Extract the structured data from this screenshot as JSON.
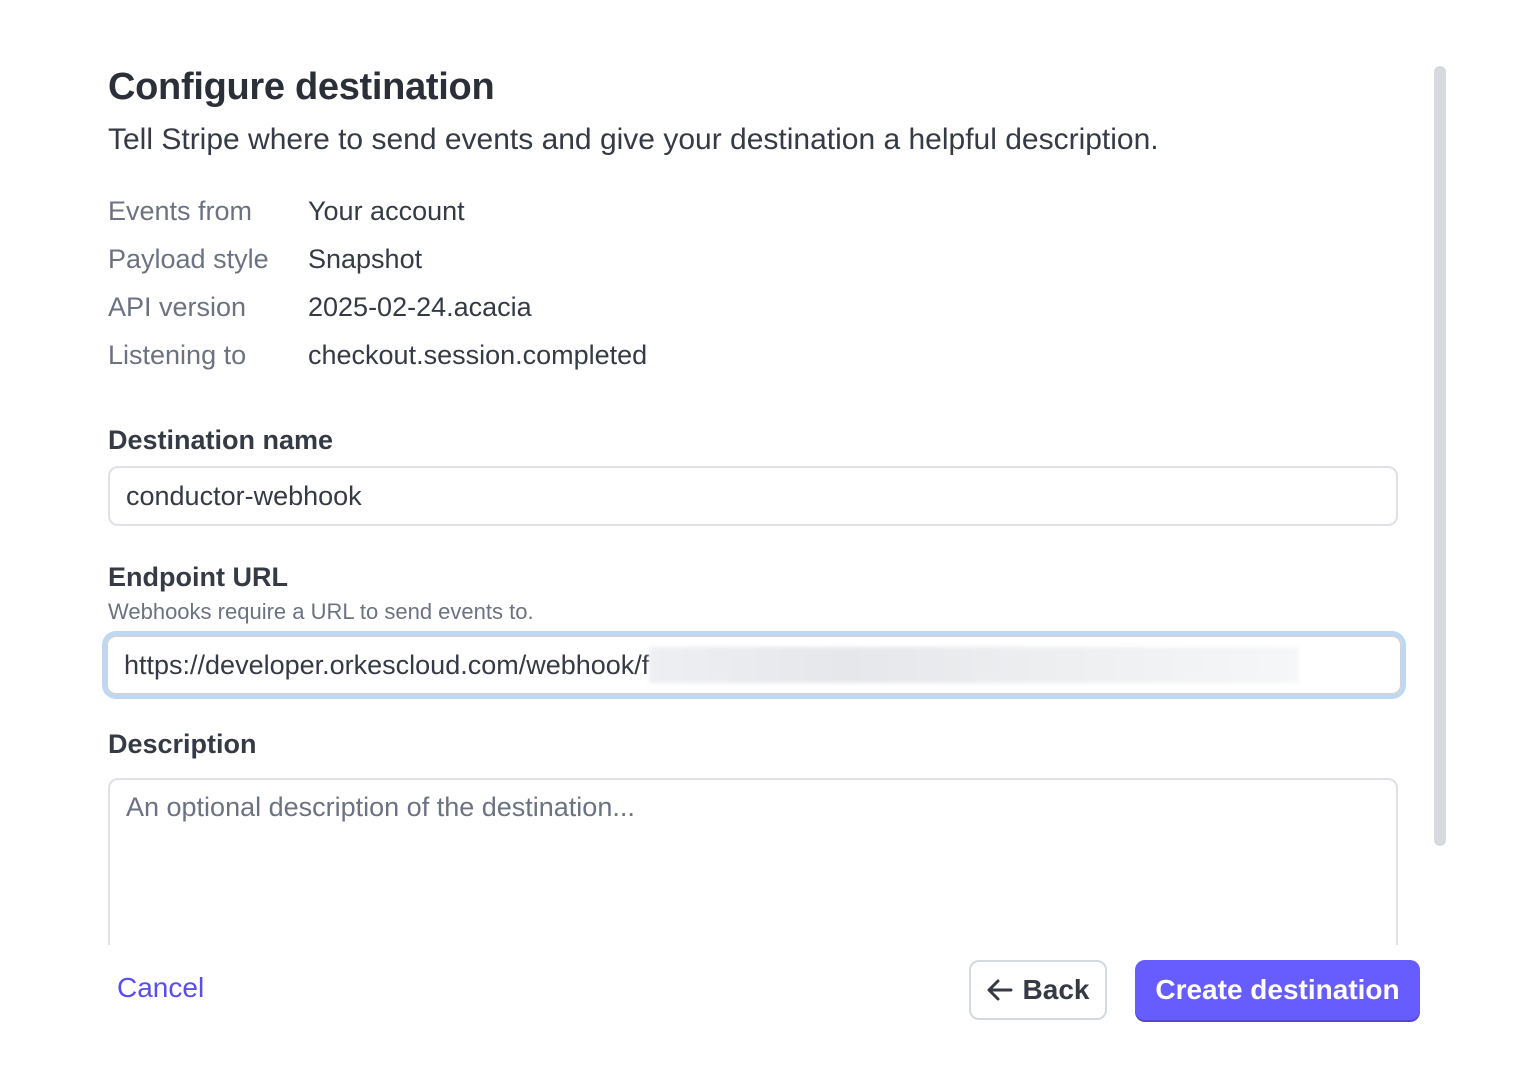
{
  "header": {
    "title": "Configure destination",
    "subtitle": "Tell Stripe where to send events and give your destination a helpful description."
  },
  "summary": [
    {
      "label": "Events from",
      "value": "Your account"
    },
    {
      "label": "Payload style",
      "value": "Snapshot"
    },
    {
      "label": "API version",
      "value": "2025-02-24.acacia"
    },
    {
      "label": "Listening to",
      "value": "checkout.session.completed"
    }
  ],
  "form": {
    "name_label": "Destination name",
    "name_value": "conductor-webhook",
    "url_label": "Endpoint URL",
    "url_hint": "Webhooks require a URL to send events to.",
    "url_value": "https://developer.orkescloud.com/webhook/f",
    "description_label": "Description",
    "description_placeholder": "An optional description of the destination..."
  },
  "footer": {
    "cancel": "Cancel",
    "back": "Back",
    "create": "Create destination"
  },
  "colors": {
    "primary": "#675dff",
    "link": "#5b4cf2",
    "focus_ring": "#bcd8f5"
  }
}
